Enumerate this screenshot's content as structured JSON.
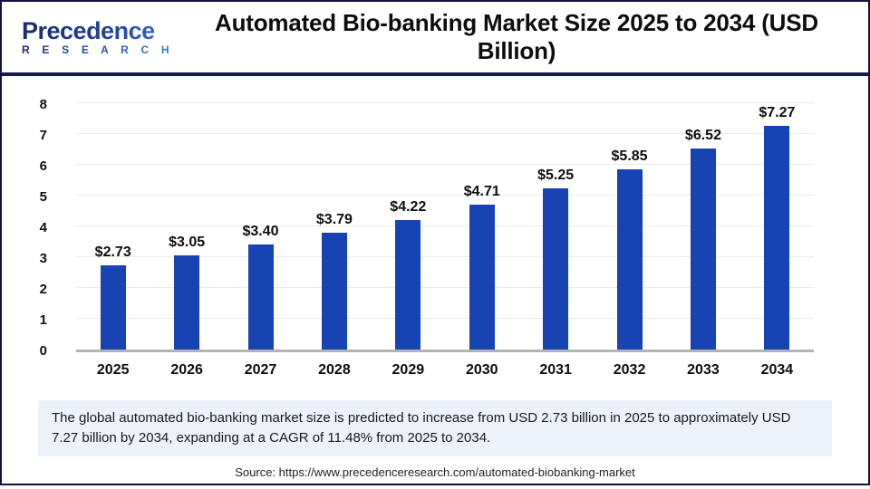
{
  "header": {
    "logo": {
      "line1": "Precedence",
      "line2": "R E S E A R C H"
    },
    "title": "Automated Bio-banking Market Size 2025 to 2034 (USD Billion)"
  },
  "chart_data": {
    "type": "bar",
    "title": "Automated Bio-banking Market Size 2025 to 2034 (USD Billion)",
    "categories": [
      "2025",
      "2026",
      "2027",
      "2028",
      "2029",
      "2030",
      "2031",
      "2032",
      "2033",
      "2034"
    ],
    "values": [
      2.73,
      3.05,
      3.4,
      3.79,
      4.22,
      4.71,
      5.25,
      5.85,
      6.52,
      7.27
    ],
    "labels": [
      "$2.73",
      "$3.05",
      "$3.40",
      "$3.79",
      "$4.22",
      "$4.71",
      "$5.25",
      "$5.85",
      "$6.52",
      "$7.27"
    ],
    "xlabel": "",
    "ylabel": "",
    "ylim": [
      0,
      8
    ],
    "yticks": [
      0,
      1,
      2,
      3,
      4,
      5,
      6,
      7,
      8
    ],
    "grid": true,
    "legend": "none",
    "bar_color": "#1843b2"
  },
  "note": {
    "text": "The global automated bio-banking market size is predicted to increase from USD 2.73 billion in 2025 to approximately USD 7.27 billion by 2034, expanding at a CAGR of 11.48% from 2025 to 2034."
  },
  "source": {
    "text": "Source: https://www.precedenceresearch.com/automated-biobanking-market"
  },
  "colors": {
    "bar": "#1843b2",
    "note_bg": "#edf1fa",
    "header_rule": "#141a52",
    "frame_border": "#10123f",
    "logo_navy": "#1c2a6a",
    "logo_blue": "#3f7ed8",
    "baseline": "#b3b3b3",
    "gridline": "#ebebeb"
  }
}
